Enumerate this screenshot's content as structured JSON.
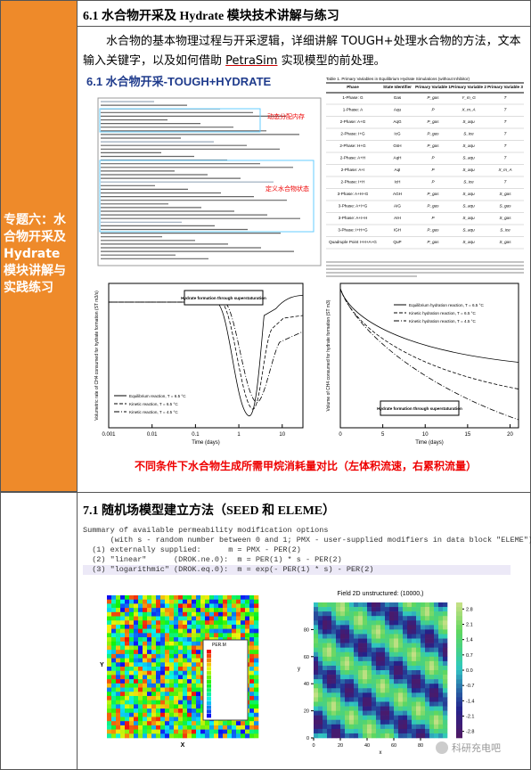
{
  "sidebar": {
    "title": "专题六：水合物开采及 Hydrate 模块讲解与实践练习"
  },
  "section1": {
    "heading": "6.1 水合物开采及 Hydrate 模块技术讲解与练习",
    "paragraph": [
      "水合物的基本物理过程与开采逻辑，详细讲解 TOUGH+处理水合物的方法，文本输入关键字，以及如何借助 ",
      "PetraSim",
      " 实现模型的前处理。"
    ],
    "figure_title": "6.1 水合物开采-TOUGH+HYDRATE",
    "annotations": [
      "动态分配内存",
      "定义水合物状态"
    ],
    "table": {
      "caption": "Table 1. Primary Variables in Equilibrium Hydrate Simulations (without Inhibitor)",
      "header": [
        "Phase",
        "State Identifier",
        "Primary Variable 1",
        "Primary Variable 2",
        "Primary Variable 3"
      ],
      "rows": [
        [
          "1-Phase: G",
          "Gas",
          "P_gas",
          "Y_m_G",
          "T"
        ],
        [
          "1-Phase: A",
          "Aqu",
          "P",
          "X_m_A",
          "T"
        ],
        [
          "2-Phase: A+G",
          "AqG",
          "P_gas",
          "S_aqu",
          "T"
        ],
        [
          "2-Phase: I+G",
          "IcG",
          "P_gas",
          "S_ice",
          "T"
        ],
        [
          "2-Phase: H+G",
          "GsH",
          "P_gas",
          "S_aqu",
          "T"
        ],
        [
          "2-Phase: A+H",
          "AqH",
          "P",
          "S_aqu",
          "T"
        ],
        [
          "2-Phase: A+I",
          "AqI",
          "P",
          "S_aqu",
          "X_m_A"
        ],
        [
          "2-Phase: I+H",
          "IcH",
          "P",
          "S_ice",
          "T"
        ],
        [
          "3-Phase: A+H+G",
          "AGH",
          "P_gas",
          "S_aqu",
          "S_gas"
        ],
        [
          "3-Phase: A+I+G",
          "AIG",
          "P_gas",
          "S_aqu",
          "S_gas"
        ],
        [
          "3-Phase: A+I+H",
          "AIH",
          "P",
          "S_aqu",
          "S_gas"
        ],
        [
          "3-Phase: I+H+G",
          "IGH",
          "P_gas",
          "S_aqu",
          "S_ice"
        ],
        [
          "Quadruple Point I+H+A+G",
          "QuP",
          "P_gas",
          "S_aqu",
          "S_gas"
        ]
      ]
    },
    "plots": [
      {
        "y_label": "Volumetric rate of CH4 consumed for hydrate formation (ST m3/s)",
        "x_label": "Time (days)",
        "xlim": [
          0.001,
          30
        ],
        "log": true,
        "xticks": [
          0.001,
          0.01,
          0.1,
          1,
          10
        ],
        "annotation": "Hydrate formation through superstaturation",
        "legend": [
          "Equilibrium reaction, T = 6.5 °C",
          "Kinetic reaction, T = 6.5 °C",
          "Kinetic reaction, T = 4.5 °C"
        ]
      },
      {
        "y_label": "Volume of CH4 consumed for hydrate formation (ST m3)",
        "x_label": "Time (days)",
        "xlim": [
          0,
          21
        ],
        "log": false,
        "xticks": [
          0,
          5,
          10,
          15,
          20
        ],
        "annotation": "Hydrate formation through superstaturation",
        "legend": [
          "Equilibrium hydration reaction, T = 6.5 °C",
          "Kinetic hydration reaction, T = 6.5 °C",
          "Kinetic hydration reaction, T = 4.5 °C"
        ]
      }
    ],
    "caption": "不同条件下水合物生成所需甲烷消耗量对比（左体积流速，右累积流量）"
  },
  "section2": {
    "heading": "7.1 随机场模型建立方法（SEED 和 ELEME）",
    "code": [
      "Summary of available permeability modification options",
      "      (with s - random number between 0 and 1; PMX - user-supplied modifiers in data block \"ELEME\"):",
      "  (1) externally supplied:      m = PMX - PER(2)",
      "  (2) \"linear\"      (DROK.ne.0):  m = PER(1) * s - PER(2)",
      "  (3) \"logarithmic\" (DROK.eq.0):  m = exp(- PER(1) * s) - PER(2)"
    ],
    "left_field": {
      "colorbar_label": "PER.M",
      "x_label": "X",
      "y_label": "Y"
    },
    "right_field": {
      "title": "Field 2D unstructured: (10000,)",
      "x_label": "x",
      "y_label": "y",
      "xlim": [
        0,
        100
      ],
      "ylim": [
        0,
        100
      ],
      "xticks": [
        0,
        20,
        40,
        60,
        80
      ],
      "yticks": [
        0,
        20,
        40,
        60,
        80
      ],
      "colorbar_lim": [
        -3.1,
        3.1
      ],
      "colorbar_ticks": [
        2.8,
        2.1,
        1.4,
        0.7,
        {
          "value": 0,
          "label": "0.0"
        },
        -0.7,
        -1.4,
        -2.1,
        -2.8
      ]
    }
  },
  "watermark": "科研充电吧"
}
